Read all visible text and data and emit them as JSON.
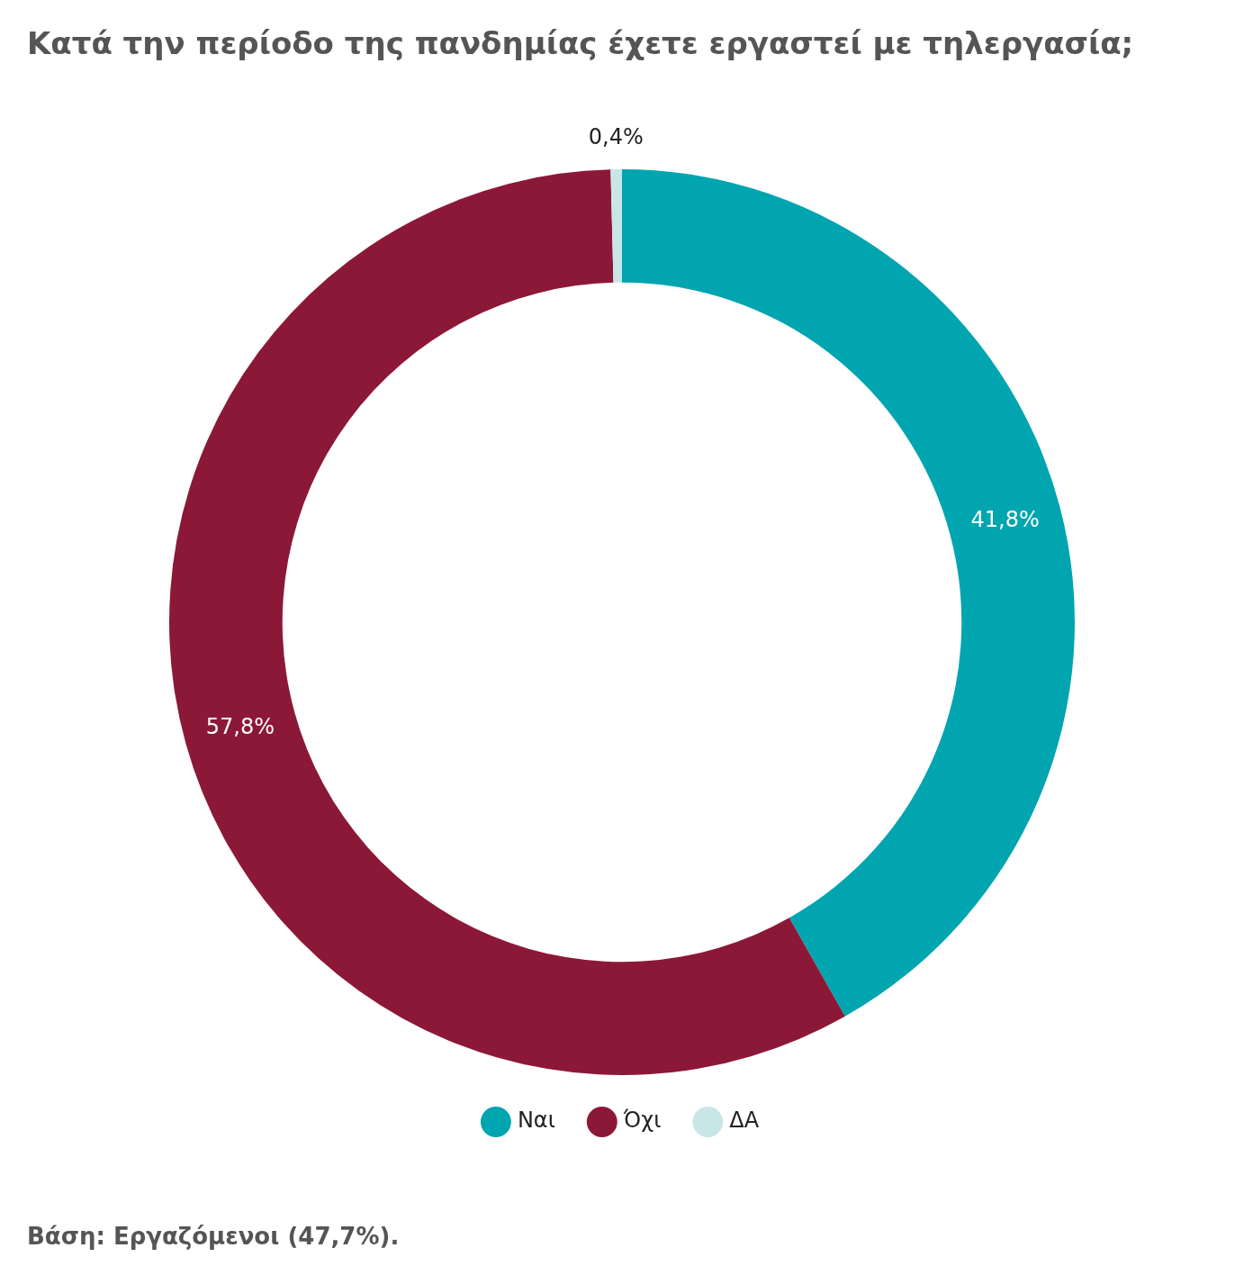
{
  "chart_data": {
    "type": "donut",
    "title": "Κατά την περίοδο της πανδημίας έχετε εργαστεί με τηλεργασία;",
    "categories": [
      "Ναι",
      "Όχι",
      "ΔΑ"
    ],
    "values": [
      41.8,
      57.8,
      0.4
    ],
    "colors": [
      "#00a5b0",
      "#8c1838",
      "#c8e6e8"
    ],
    "value_labels": [
      "41,8%",
      "57,8%",
      "0,4%"
    ],
    "legend": "bottom",
    "annotations": [
      "Βάση: Εργαζόμενοι (47,7%)."
    ]
  }
}
